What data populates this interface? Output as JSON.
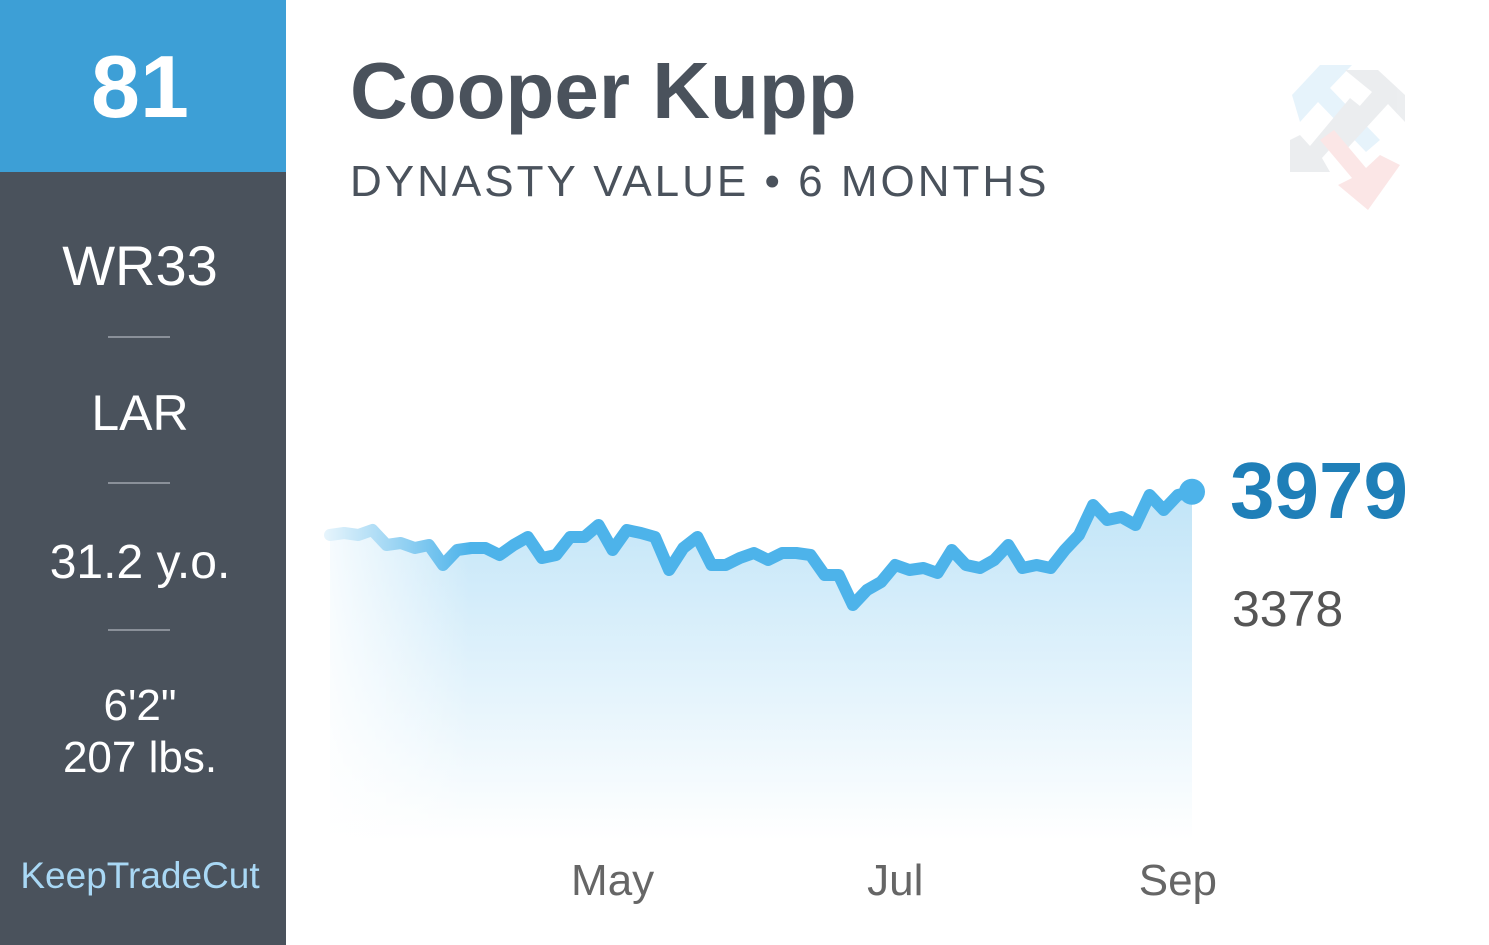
{
  "sidebar": {
    "rank": 81,
    "position_rank": "WR33",
    "team": "LAR",
    "age": "31.2 y.o.",
    "height": "6'2\"",
    "weight": "207 lbs.",
    "brand": "KeepTradeCut"
  },
  "chart_data": {
    "type": "line",
    "title": "Cooper Kupp",
    "subtitle": "DYNASTY VALUE • 6 MONTHS",
    "categories": [
      null,
      null,
      null,
      null,
      null,
      null,
      null,
      null,
      null,
      null,
      null,
      null,
      null,
      null,
      null,
      null,
      null,
      null,
      null,
      null,
      "May",
      null,
      null,
      null,
      null,
      null,
      null,
      null,
      null,
      null,
      null,
      null,
      null,
      null,
      null,
      null,
      null,
      null,
      null,
      null,
      "Jul",
      null,
      null,
      null,
      null,
      null,
      null,
      null,
      null,
      null,
      null,
      null,
      null,
      null,
      null,
      null,
      null,
      null,
      null,
      null,
      "Sep",
      null
    ],
    "values": [
      3471,
      3494,
      3471,
      3529,
      3353,
      3376,
      3318,
      3353,
      3118,
      3294,
      3318,
      3318,
      3235,
      3353,
      3447,
      3200,
      3235,
      3447,
      3447,
      3588,
      3294,
      3529,
      3494,
      3447,
      3059,
      3318,
      3447,
      3118,
      3118,
      3200,
      3259,
      3176,
      3259,
      3259,
      3235,
      3000,
      3000,
      2647,
      2824,
      2918,
      3118,
      3059,
      3082,
      3024,
      3294,
      3118,
      3082,
      3176,
      3353,
      3082,
      3118,
      3082,
      3294,
      3471,
      3824,
      3647,
      3682,
      3588,
      3941,
      3765,
      3941,
      3979
    ],
    "previous_value": 3378,
    "color": "#4db3ea",
    "ylim": [
      0,
      6000
    ]
  }
}
